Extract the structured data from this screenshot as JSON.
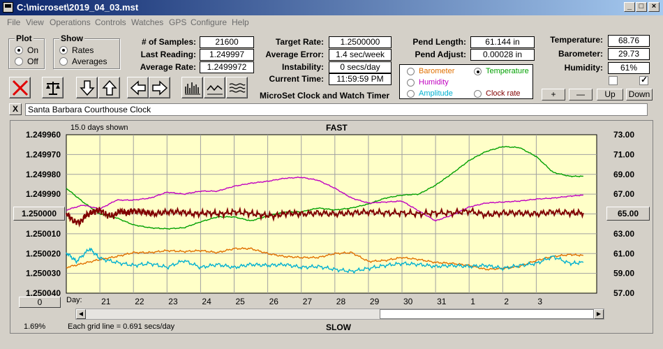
{
  "window": {
    "title": "C:\\microset\\2019_04_03.mst"
  },
  "menu": [
    "File",
    "View",
    "Operations",
    "Controls",
    "Watches",
    "GPS",
    "Configure",
    "Help"
  ],
  "plot_group": {
    "title": "Plot",
    "options": [
      "On",
      "Off"
    ],
    "selected": "On"
  },
  "show_group": {
    "title": "Show",
    "options": [
      "Rates",
      "Averages"
    ],
    "selected": "Rates"
  },
  "stats": {
    "samples_label": "# of Samples:",
    "samples": "21600",
    "last_label": "Last Reading:",
    "last": "1.249997",
    "avg_label": "Average Rate:",
    "avg": "1.2499972"
  },
  "targets": {
    "target_label": "Target Rate:",
    "target": "1.2500000",
    "error_label": "Average Error:",
    "error": "1.4 sec/week",
    "instab_label": "Instability:",
    "instab": "0 secs/day",
    "time_label": "Current Time:",
    "time": "11:59:59 PM"
  },
  "app_caption": "MicroSet Clock and Watch Timer",
  "pendulum": {
    "length_label": "Pend Length:",
    "length": "61.144 in",
    "adjust_label": "Pend Adjust:",
    "adjust": "0.00028 in"
  },
  "environment": {
    "temp_label": "Temperature:",
    "temp": "68.76",
    "baro_label": "Barometer:",
    "baro": "29.73",
    "hum_label": "Humidity:",
    "hum": "61%"
  },
  "series_options": [
    {
      "label": "Barometer",
      "color": "#e07000",
      "selected": false
    },
    {
      "label": "Temperature",
      "color": "#00a000",
      "selected": true
    },
    {
      "label": "Humidity",
      "color": "#c000c0",
      "selected": false
    },
    {
      "label": "Clock rate",
      "color": "#800000",
      "selected": false
    },
    {
      "label": "Amplitude",
      "color": "#00b0d0",
      "selected": false
    }
  ],
  "small_buttons": {
    "plus": "+",
    "minus": "—",
    "up": "Up",
    "down": "Down"
  },
  "checkboxes": {
    "first_checked": false,
    "second_checked": true
  },
  "clock_name": "Santa Barbara Courthouse Clock",
  "close_label": "X",
  "chart": {
    "top_label": "FAST",
    "bottom_label": "SLOW",
    "days_shown": "15.0 days shown",
    "grid_note": "Each grid line = 0.691 secs/day",
    "percent": "1.69%",
    "center_value": "1.250000",
    "right_center": "65.00",
    "zero_btn": "0",
    "day_label": "Day:"
  },
  "chart_data": {
    "type": "line",
    "title": "",
    "y_left_ticks": [
      "1.249960",
      "1.249970",
      "1.249980",
      "1.249990",
      "1.250000",
      "1.250010",
      "1.250020",
      "1.250030",
      "1.250040"
    ],
    "y_right_ticks": [
      "73.00",
      "71.00",
      "69.00",
      "67.00",
      "65.00",
      "63.00",
      "61.00",
      "59.00",
      "57.00"
    ],
    "x_ticks": [
      "21",
      "22",
      "23",
      "24",
      "25",
      "26",
      "27",
      "28",
      "29",
      "30",
      "31",
      "1",
      "2",
      "3"
    ],
    "ylim_left": [
      1.24996,
      1.25004
    ],
    "ylim_right": [
      57,
      73
    ],
    "series": [
      {
        "name": "Temperature",
        "color": "#00a000",
        "points": [
          [
            20.0,
            67.6
          ],
          [
            20.5,
            66.2
          ],
          [
            21.0,
            65.0
          ],
          [
            21.5,
            64.6
          ],
          [
            22.0,
            63.9
          ],
          [
            22.5,
            63.6
          ],
          [
            23.0,
            63.5
          ],
          [
            23.5,
            63.6
          ],
          [
            24.0,
            64.2
          ],
          [
            24.5,
            64.7
          ],
          [
            25.0,
            64.7
          ],
          [
            25.5,
            64.3
          ],
          [
            26.0,
            64.8
          ],
          [
            26.5,
            65.2
          ],
          [
            27.0,
            65.2
          ],
          [
            27.5,
            65.6
          ],
          [
            28.0,
            65.4
          ],
          [
            28.5,
            65.6
          ],
          [
            29.0,
            66.0
          ],
          [
            29.5,
            66.6
          ],
          [
            30.0,
            66.9
          ],
          [
            30.5,
            67.0
          ],
          [
            31.0,
            67.9
          ],
          [
            31.5,
            69.1
          ],
          [
            32.0,
            70.4
          ],
          [
            32.5,
            71.3
          ],
          [
            33.0,
            71.8
          ],
          [
            33.5,
            71.7
          ],
          [
            34.0,
            70.8
          ],
          [
            34.5,
            69.2
          ],
          [
            35.0,
            68.8
          ],
          [
            35.4,
            68.8
          ]
        ]
      },
      {
        "name": "Humidity",
        "color": "#c000c0",
        "points": [
          [
            20.0,
            65.4
          ],
          [
            20.5,
            65.9
          ],
          [
            21.0,
            65.5
          ],
          [
            21.5,
            66.4
          ],
          [
            22.0,
            66.4
          ],
          [
            22.5,
            66.6
          ],
          [
            23.0,
            67.2
          ],
          [
            23.5,
            67.0
          ],
          [
            24.0,
            67.3
          ],
          [
            24.5,
            67.3
          ],
          [
            25.0,
            67.8
          ],
          [
            25.5,
            68.1
          ],
          [
            26.0,
            68.3
          ],
          [
            26.5,
            68.6
          ],
          [
            27.0,
            68.7
          ],
          [
            27.5,
            68.4
          ],
          [
            28.0,
            67.6
          ],
          [
            28.5,
            66.6
          ],
          [
            29.0,
            66.1
          ],
          [
            29.5,
            66.2
          ],
          [
            30.0,
            66.3
          ],
          [
            30.5,
            65.3
          ],
          [
            31.0,
            64.3
          ],
          [
            31.5,
            64.9
          ],
          [
            32.0,
            65.7
          ],
          [
            32.5,
            66.1
          ],
          [
            33.0,
            66.2
          ],
          [
            33.5,
            66.3
          ],
          [
            34.0,
            66.5
          ],
          [
            34.5,
            66.6
          ],
          [
            35.0,
            66.8
          ],
          [
            35.4,
            66.9
          ]
        ]
      },
      {
        "name": "Clock rate",
        "color": "#800000",
        "points": [
          [
            20.0,
            1.2499995
          ],
          [
            20.2,
            1.2500035
          ],
          [
            20.4,
            1.2500045
          ],
          [
            20.6,
            1.2500005
          ],
          [
            20.8,
            1.249999
          ],
          [
            21.0,
            1.249998
          ],
          [
            21.2,
            1.2500005
          ],
          [
            21.4,
            1.250001
          ],
          [
            21.6,
            1.2499985
          ],
          [
            21.8,
            1.2499995
          ],
          [
            22.0,
            1.2499985
          ],
          [
            22.3,
            1.249999
          ],
          [
            22.6,
            1.25
          ],
          [
            23.0,
            1.249999
          ],
          [
            23.4,
            1.249999
          ],
          [
            23.8,
            1.25
          ],
          [
            24.2,
            1.2499995
          ],
          [
            24.6,
            1.25
          ],
          [
            25.0,
            1.249999
          ],
          [
            25.4,
            1.2499995
          ],
          [
            25.8,
            1.2500005
          ],
          [
            26.2,
            1.250001
          ],
          [
            26.6,
            1.2499995
          ],
          [
            27.0,
            1.25
          ],
          [
            27.5,
            1.2499995
          ],
          [
            28.0,
            1.25
          ],
          [
            28.5,
            1.2499995
          ],
          [
            29.0,
            1.249999
          ],
          [
            29.5,
            1.2499995
          ],
          [
            30.0,
            1.2499995
          ],
          [
            30.5,
            1.25
          ],
          [
            31.0,
            1.2499995
          ],
          [
            31.5,
            1.2499995
          ],
          [
            32.0,
            1.2499985
          ],
          [
            32.5,
            1.2500005
          ],
          [
            33.0,
            1.2499995
          ],
          [
            33.5,
            1.2499995
          ],
          [
            34.0,
            1.25
          ],
          [
            34.5,
            1.249999
          ],
          [
            35.0,
            1.2499995
          ],
          [
            35.4,
            1.2499995
          ]
        ]
      },
      {
        "name": "Barometer",
        "color": "#e07000",
        "points": [
          [
            20.0,
            59.6
          ],
          [
            20.5,
            60.0
          ],
          [
            21.0,
            60.4
          ],
          [
            21.5,
            60.7
          ],
          [
            22.0,
            61.1
          ],
          [
            22.5,
            61.1
          ],
          [
            23.0,
            61.3
          ],
          [
            23.5,
            61.2
          ],
          [
            24.0,
            61.3
          ],
          [
            24.5,
            61.1
          ],
          [
            25.0,
            61.5
          ],
          [
            25.5,
            61.5
          ],
          [
            26.0,
            61.0
          ],
          [
            26.5,
            60.7
          ],
          [
            27.0,
            60.6
          ],
          [
            27.5,
            60.6
          ],
          [
            28.0,
            61.0
          ],
          [
            28.5,
            61.1
          ],
          [
            29.0,
            60.2
          ],
          [
            29.5,
            60.3
          ],
          [
            30.0,
            60.6
          ],
          [
            30.5,
            60.4
          ],
          [
            31.0,
            60.1
          ],
          [
            31.5,
            60.0
          ],
          [
            32.0,
            59.8
          ],
          [
            32.5,
            59.4
          ],
          [
            33.0,
            59.5
          ],
          [
            33.5,
            59.7
          ],
          [
            34.0,
            60.3
          ],
          [
            34.5,
            60.7
          ],
          [
            35.0,
            60.9
          ],
          [
            35.4,
            60.8
          ]
        ]
      },
      {
        "name": "Amplitude",
        "color": "#00b0d0",
        "points": [
          [
            20.0,
            61.1
          ],
          [
            20.3,
            60.2
          ],
          [
            20.7,
            61.5
          ],
          [
            21.0,
            60.5
          ],
          [
            21.5,
            60.1
          ],
          [
            22.0,
            59.8
          ],
          [
            22.5,
            60.0
          ],
          [
            23.0,
            59.6
          ],
          [
            23.5,
            60.3
          ],
          [
            24.0,
            59.6
          ],
          [
            24.5,
            59.9
          ],
          [
            25.0,
            59.6
          ],
          [
            25.5,
            59.9
          ],
          [
            26.0,
            59.8
          ],
          [
            26.5,
            59.9
          ],
          [
            27.0,
            59.6
          ],
          [
            27.5,
            59.7
          ],
          [
            28.0,
            59.4
          ],
          [
            28.5,
            59.2
          ],
          [
            29.0,
            59.5
          ],
          [
            29.5,
            59.8
          ],
          [
            30.0,
            60.0
          ],
          [
            30.5,
            59.9
          ],
          [
            31.0,
            59.7
          ],
          [
            31.5,
            59.8
          ],
          [
            32.0,
            59.7
          ],
          [
            32.5,
            59.8
          ],
          [
            33.0,
            59.5
          ],
          [
            33.5,
            59.8
          ],
          [
            34.0,
            60.0
          ],
          [
            34.5,
            60.7
          ],
          [
            35.0,
            60.0
          ],
          [
            35.4,
            60.1
          ]
        ]
      }
    ]
  }
}
